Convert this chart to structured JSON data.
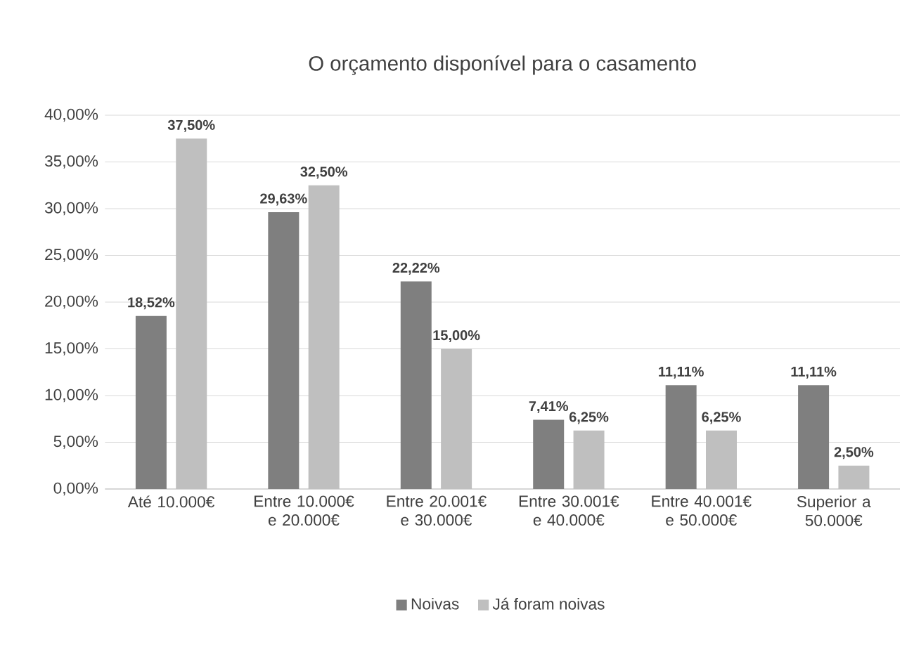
{
  "chart_data": {
    "type": "bar",
    "title": "O orçamento disponível para o casamento",
    "categories": [
      "Até 10.000€",
      "Entre 10.000€ e 20.000€",
      "Entre 20.001€ e 30.000€",
      "Entre 30.001€ e 40.000€",
      "Entre 40.001€ e 50.000€",
      "Superior a 50.000€"
    ],
    "series": [
      {
        "name": "Noivas",
        "color": "#7f7f7f",
        "values": [
          18.52,
          29.63,
          22.22,
          7.41,
          11.11,
          11.11
        ],
        "value_labels": [
          "18,52%",
          "29,63%",
          "22,22%",
          "7,41%",
          "11,11%",
          "11,11%"
        ]
      },
      {
        "name": "Já foram noivas",
        "color": "#bfbfbf",
        "values": [
          37.5,
          32.5,
          15.0,
          6.25,
          6.25,
          2.5
        ],
        "value_labels": [
          "37,50%",
          "32,50%",
          "15,00%",
          "6,25%",
          "6,25%",
          "2,50%"
        ]
      }
    ],
    "ylim": [
      0,
      40
    ],
    "yticks": [
      {
        "value": 0,
        "label": "0,00%"
      },
      {
        "value": 5,
        "label": "5,00%"
      },
      {
        "value": 10,
        "label": "10,00%"
      },
      {
        "value": 15,
        "label": "15,00%"
      },
      {
        "value": 20,
        "label": "20,00%"
      },
      {
        "value": 25,
        "label": "25,00%"
      },
      {
        "value": 30,
        "label": "30,00%"
      },
      {
        "value": 35,
        "label": "35,00%"
      },
      {
        "value": 40,
        "label": "40,00%"
      }
    ],
    "grid": "y",
    "legend": "bottom"
  }
}
